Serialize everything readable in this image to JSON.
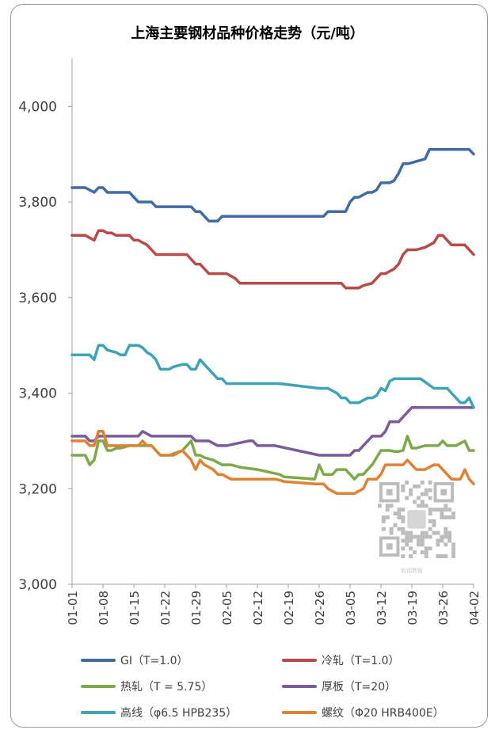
{
  "chart_data": {
    "type": "line",
    "title": "上海主要钢材品种价格走势（元/吨）",
    "xlabel": "",
    "ylabel": "",
    "ylim": [
      3000,
      4100
    ],
    "yticks": [
      3000,
      3200,
      3400,
      3600,
      3800,
      4000
    ],
    "ytick_labels": [
      "3,000",
      "3,200",
      "3,400",
      "3,600",
      "3,800",
      "4,000"
    ],
    "xlim": [
      0,
      91
    ],
    "xticks": [
      0,
      7,
      14,
      21,
      28,
      35,
      42,
      49,
      56,
      63,
      70,
      77,
      84,
      91
    ],
    "xtick_labels": [
      "01-01",
      "01-08",
      "01-15",
      "01-22",
      "01-29",
      "02-05",
      "02-12",
      "02-19",
      "02-26",
      "03-05",
      "03-12",
      "03-19",
      "03-26",
      "04-02"
    ],
    "legend_position": "bottom",
    "series": [
      {
        "name": "GI（T=1.0）",
        "color": "#3f6ca6",
        "x": [
          0,
          3,
          4,
          5,
          6,
          7,
          8,
          9,
          13,
          15,
          18,
          19,
          20,
          27,
          28,
          29,
          30,
          31,
          33,
          34,
          35,
          36,
          57,
          58,
          61,
          62,
          63,
          64,
          65,
          66,
          67,
          68,
          69,
          70,
          72,
          73,
          74,
          75,
          76,
          77,
          78,
          80,
          81,
          82,
          90,
          91
        ],
        "y": [
          3830,
          3830,
          3825,
          3820,
          3830,
          3830,
          3820,
          3820,
          3820,
          3800,
          3800,
          3790,
          3790,
          3790,
          3780,
          3780,
          3770,
          3760,
          3760,
          3770,
          3770,
          3770,
          3770,
          3780,
          3780,
          3780,
          3800,
          3810,
          3810,
          3815,
          3820,
          3820,
          3825,
          3840,
          3840,
          3845,
          3860,
          3880,
          3880,
          3882,
          3885,
          3890,
          3910,
          3910,
          3910,
          3900
        ]
      },
      {
        "name": "冷轧（T=1.0）",
        "color": "#b94a48",
        "x": [
          0,
          3,
          4,
          5,
          6,
          7,
          8,
          9,
          10,
          13,
          14,
          15,
          16,
          17,
          18,
          19,
          20,
          21,
          22,
          26,
          27,
          28,
          29,
          30,
          31,
          33,
          34,
          35,
          36,
          37,
          38,
          57,
          58,
          61,
          62,
          63,
          64,
          65,
          66,
          68,
          69,
          70,
          71,
          72,
          73,
          74,
          75,
          76,
          77,
          78,
          80,
          82,
          83,
          84,
          85,
          86,
          89,
          91
        ],
        "y": [
          3730,
          3730,
          3725,
          3720,
          3740,
          3740,
          3735,
          3735,
          3730,
          3730,
          3720,
          3720,
          3715,
          3710,
          3700,
          3690,
          3690,
          3690,
          3690,
          3690,
          3680,
          3670,
          3670,
          3660,
          3650,
          3650,
          3650,
          3650,
          3645,
          3640,
          3630,
          3630,
          3630,
          3630,
          3620,
          3620,
          3620,
          3620,
          3625,
          3630,
          3640,
          3650,
          3650,
          3655,
          3660,
          3670,
          3690,
          3700,
          3700,
          3700,
          3705,
          3715,
          3730,
          3730,
          3720,
          3710,
          3710,
          3690
        ]
      },
      {
        "name": "热轧（T = 5.75）",
        "color": "#7ea94b",
        "x": [
          0,
          3,
          4,
          5,
          6,
          7,
          8,
          9,
          10,
          11,
          13,
          14,
          15,
          16,
          18,
          19,
          20,
          21,
          22,
          25,
          26,
          27,
          28,
          29,
          30,
          32,
          34,
          35,
          36,
          38,
          42,
          47,
          48,
          55,
          56,
          57,
          59,
          60,
          61,
          62,
          64,
          65,
          66,
          67,
          68,
          70,
          71,
          72,
          73,
          74,
          75,
          76,
          77,
          78,
          80,
          82,
          83,
          84,
          85,
          86,
          87,
          88,
          89,
          90,
          91
        ],
        "y": [
          3270,
          3270,
          3250,
          3260,
          3300,
          3300,
          3280,
          3280,
          3285,
          3285,
          3290,
          3290,
          3290,
          3290,
          3290,
          3280,
          3270,
          3270,
          3270,
          3280,
          3290,
          3300,
          3270,
          3270,
          3265,
          3260,
          3250,
          3250,
          3250,
          3245,
          3240,
          3230,
          3225,
          3220,
          3250,
          3230,
          3230,
          3240,
          3240,
          3240,
          3220,
          3230,
          3230,
          3240,
          3250,
          3280,
          3280,
          3280,
          3278,
          3278,
          3280,
          3310,
          3285,
          3285,
          3290,
          3290,
          3290,
          3300,
          3290,
          3290,
          3290,
          3295,
          3300,
          3280,
          3280
        ]
      },
      {
        "name": "厚板（T=20）",
        "color": "#7b5a9e",
        "x": [
          0,
          3,
          4,
          5,
          6,
          7,
          8,
          12,
          13,
          14,
          15,
          16,
          17,
          18,
          19,
          20,
          26,
          27,
          28,
          29,
          30,
          31,
          33,
          34,
          35,
          40,
          41,
          42,
          45,
          46,
          56,
          57,
          61,
          62,
          63,
          64,
          65,
          66,
          67,
          68,
          69,
          70,
          71,
          72,
          73,
          74,
          75,
          76,
          77,
          78,
          91
        ],
        "y": [
          3310,
          3310,
          3300,
          3300,
          3310,
          3310,
          3310,
          3310,
          3310,
          3310,
          3310,
          3320,
          3315,
          3310,
          3310,
          3310,
          3310,
          3310,
          3300,
          3300,
          3300,
          3300,
          3290,
          3290,
          3290,
          3300,
          3300,
          3290,
          3290,
          3290,
          3270,
          3270,
          3270,
          3270,
          3270,
          3280,
          3280,
          3290,
          3300,
          3310,
          3310,
          3310,
          3320,
          3340,
          3340,
          3340,
          3350,
          3360,
          3370,
          3370,
          3370
        ]
      },
      {
        "name": "高线（φ6.5     HPB235）",
        "color": "#3ea2b8",
        "x": [
          0,
          4,
          5,
          6,
          7,
          8,
          10,
          11,
          12,
          13,
          14,
          15,
          16,
          17,
          18,
          19,
          20,
          21,
          22,
          23,
          25,
          26,
          27,
          28,
          29,
          30,
          31,
          32,
          33,
          34,
          35,
          36,
          45,
          47,
          56,
          57,
          58,
          60,
          61,
          62,
          63,
          64,
          65,
          66,
          67,
          68,
          69,
          70,
          71,
          72,
          73,
          74,
          75,
          76,
          77,
          78,
          79,
          82,
          84,
          85,
          86,
          87,
          88,
          89,
          90,
          91
        ],
        "y": [
          3480,
          3480,
          3470,
          3500,
          3500,
          3490,
          3485,
          3480,
          3480,
          3500,
          3500,
          3500,
          3495,
          3485,
          3480,
          3470,
          3450,
          3450,
          3450,
          3455,
          3460,
          3460,
          3450,
          3450,
          3470,
          3460,
          3450,
          3440,
          3430,
          3430,
          3420,
          3420,
          3420,
          3420,
          3410,
          3410,
          3410,
          3400,
          3390,
          3390,
          3380,
          3380,
          3380,
          3385,
          3390,
          3390,
          3395,
          3410,
          3405,
          3425,
          3430,
          3430,
          3430,
          3430,
          3430,
          3430,
          3430,
          3410,
          3410,
          3410,
          3400,
          3390,
          3380,
          3380,
          3390,
          3370
        ]
      },
      {
        "name": "螺纹（Φ20     HRB400E）",
        "color": "#e08234",
        "x": [
          0,
          3,
          4,
          5,
          6,
          7,
          8,
          9,
          10,
          11,
          12,
          13,
          14,
          15,
          16,
          17,
          18,
          19,
          20,
          21,
          22,
          23,
          24,
          25,
          26,
          27,
          28,
          29,
          30,
          31,
          32,
          33,
          34,
          35,
          36,
          37,
          38,
          39,
          40,
          45,
          46,
          47,
          48,
          55,
          56,
          57,
          58,
          59,
          60,
          61,
          62,
          63,
          64,
          65,
          66,
          67,
          68,
          69,
          70,
          71,
          72,
          73,
          74,
          75,
          76,
          77,
          78,
          79,
          80,
          81,
          82,
          83,
          84,
          85,
          86,
          87,
          88,
          89,
          90,
          91
        ],
        "y": [
          3300,
          3300,
          3290,
          3290,
          3320,
          3320,
          3290,
          3290,
          3290,
          3290,
          3290,
          3290,
          3290,
          3290,
          3300,
          3290,
          3290,
          3280,
          3270,
          3270,
          3270,
          3270,
          3275,
          3280,
          3270,
          3260,
          3240,
          3260,
          3250,
          3245,
          3240,
          3230,
          3230,
          3225,
          3220,
          3220,
          3220,
          3220,
          3220,
          3220,
          3220,
          3218,
          3215,
          3210,
          3210,
          3210,
          3200,
          3195,
          3190,
          3190,
          3190,
          3190,
          3190,
          3195,
          3200,
          3220,
          3220,
          3220,
          3230,
          3250,
          3250,
          3250,
          3250,
          3250,
          3260,
          3250,
          3240,
          3240,
          3240,
          3245,
          3250,
          3250,
          3240,
          3230,
          3220,
          3220,
          3220,
          3240,
          3220,
          3210
        ]
      }
    ]
  },
  "watermark": {
    "caption": "和钢数智",
    "icon": "qr-code-icon"
  }
}
